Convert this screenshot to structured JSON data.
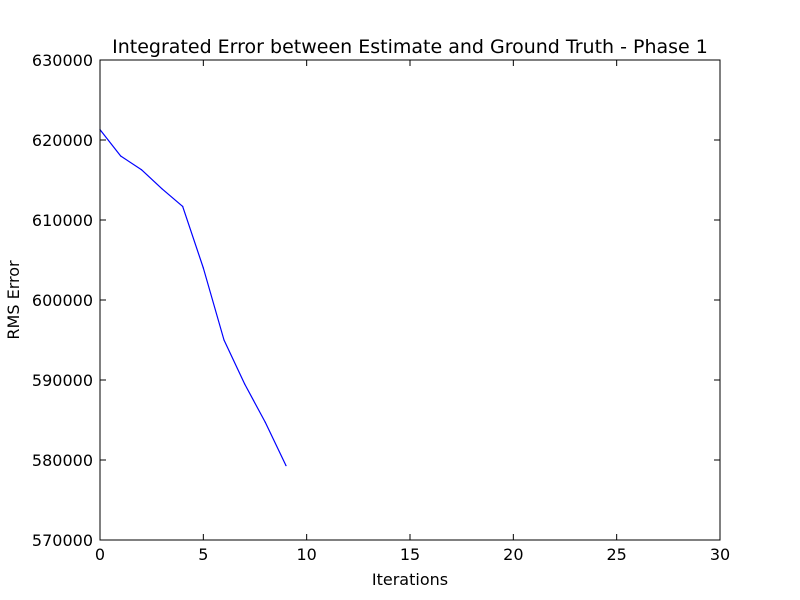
{
  "chart_data": {
    "type": "line",
    "title": "Integrated Error between Estimate and Ground Truth - Phase 1",
    "xlabel": "Iterations",
    "ylabel": "RMS Error",
    "xlim": [
      0,
      30
    ],
    "ylim": [
      570000,
      630000
    ],
    "xticks": [
      0,
      5,
      10,
      15,
      20,
      25,
      30
    ],
    "xtick_labels": [
      "0",
      "5",
      "10",
      "15",
      "20",
      "25",
      "30"
    ],
    "yticks": [
      570000,
      580000,
      590000,
      600000,
      610000,
      620000,
      630000
    ],
    "ytick_labels": [
      "570000",
      "580000",
      "590000",
      "600000",
      "610000",
      "620000",
      "630000"
    ],
    "grid": false,
    "series": [
      {
        "color": "#0000ff",
        "x": [
          0,
          1,
          2,
          3,
          4,
          5,
          6,
          7,
          8,
          9
        ],
        "y": [
          621300,
          618000,
          616300,
          613900,
          611700,
          604000,
          595000,
          589500,
          584700,
          579300
        ]
      }
    ]
  }
}
